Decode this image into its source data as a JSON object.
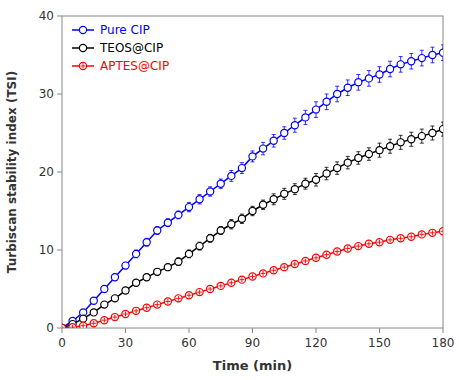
{
  "chart_data": {
    "type": "line",
    "xlabel": "Time (min)",
    "ylabel": "Turbiscan stability index (TSI)",
    "x": [
      0,
      5,
      10,
      15,
      20,
      25,
      30,
      35,
      40,
      45,
      50,
      55,
      60,
      65,
      70,
      75,
      80,
      85,
      90,
      95,
      100,
      105,
      110,
      115,
      120,
      125,
      130,
      135,
      140,
      145,
      150,
      155,
      160,
      165,
      170,
      175,
      180
    ],
    "series": [
      {
        "name": "Pure CIP",
        "color": "#0000FF",
        "marker": "circle",
        "line_style": "solid",
        "values": [
          0,
          0.9,
          2.0,
          3.5,
          5.0,
          6.5,
          8.0,
          9.5,
          11.0,
          12.5,
          13.5,
          14.5,
          15.5,
          16.5,
          17.5,
          18.5,
          19.5,
          20.5,
          22.0,
          23.0,
          24.0,
          25.0,
          26.0,
          27.0,
          28.0,
          29.0,
          30.0,
          30.8,
          31.5,
          32.0,
          32.5,
          33.2,
          33.8,
          34.2,
          34.6,
          35.0,
          35.3
        ],
        "errors": [
          0,
          0.3,
          0.3,
          0.3,
          0.3,
          0.4,
          0.4,
          0.5,
          0.5,
          0.5,
          0.5,
          0.5,
          0.6,
          0.6,
          0.6,
          0.6,
          0.7,
          0.7,
          0.7,
          0.8,
          0.8,
          0.8,
          0.9,
          0.9,
          1.0,
          1.0,
          1.0,
          1.0,
          1.0,
          1.0,
          1.0,
          1.0,
          1.0,
          1.0,
          1.0,
          1.0,
          1.0
        ]
      },
      {
        "name": "TEOS@CIP",
        "color": "#000000",
        "marker": "circle",
        "line_style": "solid",
        "values": [
          0,
          0.5,
          1.2,
          2.0,
          3.0,
          3.8,
          4.8,
          5.8,
          6.5,
          7.2,
          7.8,
          8.5,
          9.5,
          10.5,
          11.5,
          12.5,
          13.3,
          14.0,
          15.0,
          15.8,
          16.5,
          17.2,
          17.8,
          18.5,
          19.0,
          19.8,
          20.5,
          21.2,
          21.8,
          22.3,
          22.8,
          23.3,
          23.8,
          24.2,
          24.6,
          25.0,
          25.5
        ],
        "errors": [
          0,
          0.3,
          0.3,
          0.3,
          0.3,
          0.3,
          0.3,
          0.4,
          0.4,
          0.4,
          0.4,
          0.5,
          0.5,
          0.5,
          0.5,
          0.5,
          0.6,
          0.6,
          0.6,
          0.6,
          0.7,
          0.7,
          0.7,
          0.7,
          0.8,
          0.8,
          0.8,
          0.8,
          0.8,
          0.8,
          0.9,
          0.9,
          0.9,
          0.9,
          0.9,
          0.9,
          0.9
        ]
      },
      {
        "name": "APTES@CIP",
        "color": "#FF0000",
        "marker": "circle-plus",
        "line_style": "solid",
        "values": [
          0,
          0.1,
          0.3,
          0.6,
          1.0,
          1.4,
          1.8,
          2.2,
          2.6,
          3.0,
          3.4,
          3.8,
          4.2,
          4.6,
          5.0,
          5.4,
          5.8,
          6.2,
          6.6,
          7.0,
          7.4,
          7.8,
          8.2,
          8.6,
          9.0,
          9.4,
          9.8,
          10.2,
          10.5,
          10.8,
          11.0,
          11.3,
          11.5,
          11.7,
          12.0,
          12.2,
          12.4
        ],
        "errors": [
          0,
          0.1,
          0.1,
          0.1,
          0.1,
          0.1,
          0.1,
          0.1,
          0.1,
          0.1,
          0.1,
          0.1,
          0.1,
          0.1,
          0.15,
          0.15,
          0.15,
          0.15,
          0.15,
          0.15,
          0.2,
          0.2,
          0.2,
          0.2,
          0.2,
          0.2,
          0.2,
          0.2,
          0.2,
          0.2,
          0.2,
          0.2,
          0.2,
          0.2,
          0.2,
          0.2,
          0.2
        ]
      }
    ],
    "xlim": [
      0,
      180
    ],
    "ylim": [
      0,
      40
    ],
    "xticks": [
      0,
      30,
      60,
      90,
      120,
      150,
      180
    ],
    "yticks": [
      0,
      10,
      20,
      30,
      40
    ],
    "grid": false,
    "legend": "upper left"
  }
}
